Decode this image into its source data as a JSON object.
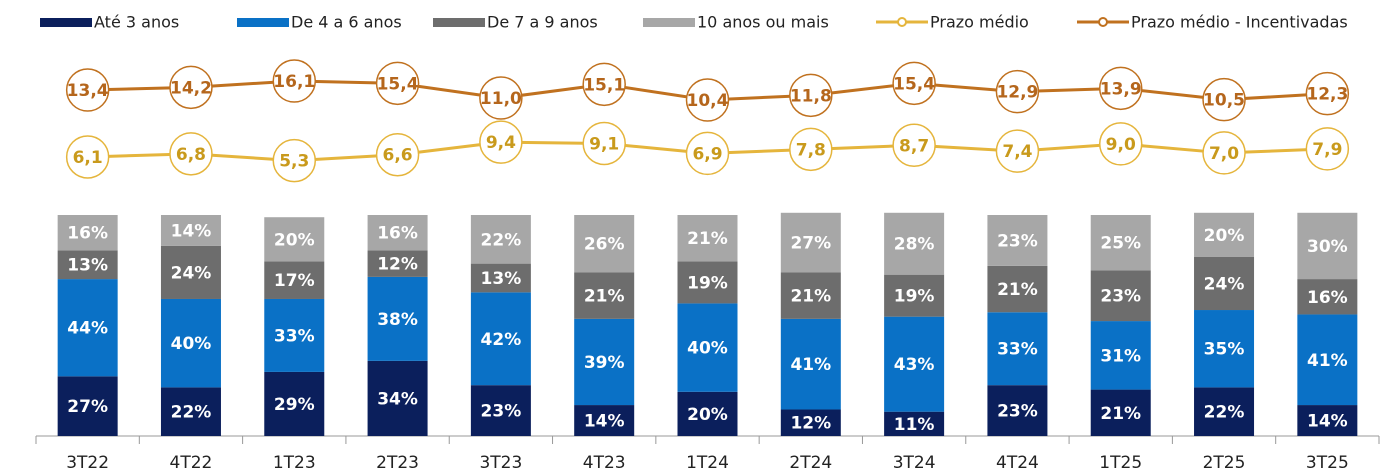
{
  "chart_data": {
    "type": "bar",
    "categories": [
      "3T22",
      "4T22",
      "1T23",
      "2T23",
      "3T23",
      "4T23",
      "1T24",
      "2T24",
      "3T24",
      "4T24",
      "1T25",
      "2T25",
      "3T25"
    ],
    "ylim": [
      0,
      100
    ],
    "series": [
      {
        "name": "Até 3 anos",
        "type": "bar",
        "color": "#0b1f5c",
        "values": [
          27,
          22,
          29,
          34,
          23,
          14,
          20,
          12,
          11,
          23,
          21,
          22,
          14
        ],
        "value_labels": [
          "27%",
          "22%",
          "29%",
          "34%",
          "23%",
          "14%",
          "20%",
          "12%",
          "11%",
          "23%",
          "21%",
          "22%",
          "14%"
        ]
      },
      {
        "name": "De 4 a 6 anos",
        "type": "bar",
        "color": "#0a71c6",
        "values": [
          44,
          40,
          33,
          38,
          42,
          39,
          40,
          41,
          43,
          33,
          31,
          35,
          41
        ],
        "value_labels": [
          "44%",
          "40%",
          "33%",
          "38%",
          "42%",
          "39%",
          "40%",
          "41%",
          "43%",
          "33%",
          "31%",
          "35%",
          "41%"
        ]
      },
      {
        "name": "De 7 a 9 anos",
        "type": "bar",
        "color": "#6d6d6d",
        "values": [
          13,
          24,
          17,
          12,
          13,
          21,
          19,
          21,
          19,
          21,
          23,
          24,
          16
        ],
        "value_labels": [
          "13%",
          "24%",
          "17%",
          "12%",
          "13%",
          "21%",
          "19%",
          "21%",
          "19%",
          "21%",
          "23%",
          "24%",
          "16%"
        ]
      },
      {
        "name": "10 anos ou mais",
        "type": "bar",
        "color": "#a7a7a7",
        "values": [
          16,
          14,
          20,
          16,
          22,
          26,
          21,
          27,
          28,
          23,
          25,
          20,
          30
        ],
        "value_labels": [
          "16%",
          "14%",
          "20%",
          "16%",
          "22%",
          "26%",
          "21%",
          "27%",
          "28%",
          "23%",
          "25%",
          "20%",
          "30%"
        ]
      },
      {
        "name": "Prazo médio",
        "type": "line",
        "color": "#e5b53c",
        "ylim": [
          1,
          14.3
        ],
        "values": [
          6.1,
          6.8,
          5.3,
          6.6,
          9.4,
          9.1,
          6.9,
          7.8,
          8.7,
          7.4,
          9.0,
          7.0,
          7.9
        ],
        "value_labels": [
          "6,1",
          "6,8",
          "5,3",
          "6,6",
          "9,4",
          "9,1",
          "6,9",
          "7,8",
          "8,7",
          "7,4",
          "9,0",
          "7,0",
          "7,9"
        ]
      },
      {
        "name": "Prazo médio - Incentivadas",
        "type": "line",
        "color": "#c0711f",
        "ylim": [
          4.4,
          25.4
        ],
        "values": [
          13.4,
          14.2,
          16.1,
          15.4,
          11.0,
          15.1,
          10.4,
          11.8,
          15.4,
          12.9,
          13.9,
          10.5,
          12.3
        ],
        "value_labels": [
          "13,4",
          "14,2",
          "16,1",
          "15,4",
          "11,0",
          "15,1",
          "10,4",
          "11,8",
          "15,4",
          "12,9",
          "13,9",
          "10,5",
          "12,3"
        ]
      }
    ]
  }
}
